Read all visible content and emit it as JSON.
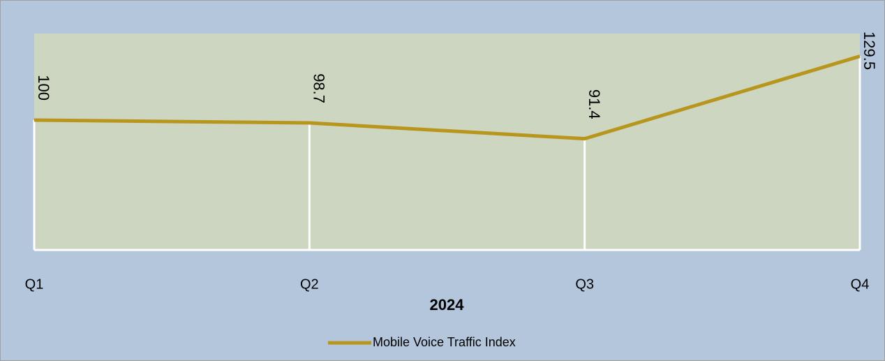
{
  "chart_data": {
    "type": "line",
    "categories": [
      "Q1",
      "Q2",
      "Q3",
      "Q4"
    ],
    "x_label": "2024",
    "series": [
      {
        "name": "Mobile Voice Traffic Index",
        "color": "#b8961e",
        "values": [
          100,
          98.7,
          91.4,
          129.5
        ]
      }
    ],
    "ylim": [
      40,
      140
    ],
    "drop_lines": true,
    "legend": "bottom"
  }
}
